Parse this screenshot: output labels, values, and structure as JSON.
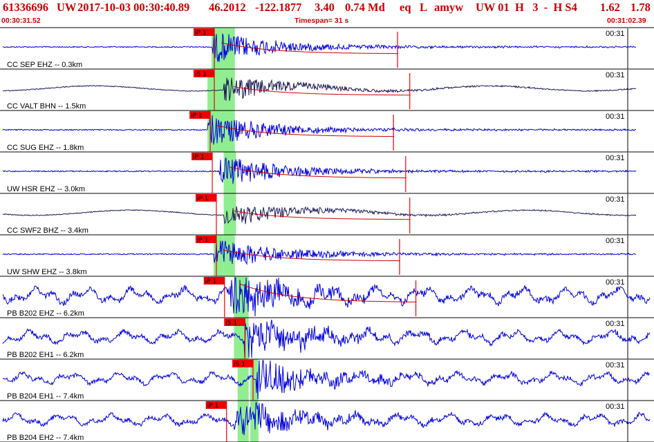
{
  "header": {
    "event_id": "61336696",
    "network": "UW",
    "origin_time": "2017-10-03 00:30:40.89",
    "lat": "46.2012",
    "lon": "-122.1877",
    "depth": "3.40",
    "magnitude": "0.74 Md",
    "event_type": "eq",
    "location_type": "L",
    "analyst": "amyw",
    "quality": "UW 01  H   3  -  H S4",
    "value1": "1.62",
    "value2": "1.78"
  },
  "timespan": {
    "start_time": "00:30:31.52",
    "label": "Timespan=  31 s",
    "end_time": "00:31:02.39"
  },
  "colors": {
    "header_red": "#cc0000",
    "pick_red": "#ee0000",
    "trace_blue": "#0000dd",
    "trace_dark": "#1a1a55",
    "highlight_green": "#90ee90",
    "coda_red": "#cc0000"
  },
  "chart_data": {
    "type": "line",
    "x_unit": "seconds",
    "time_window": [
      0,
      31
    ],
    "traces": [
      {
        "label": "CC SEP EHZ -- 0.3km",
        "pick": "iP 1",
        "pick_time": 10.4,
        "s_band": [
          10.4,
          11.0
        ],
        "time_mark": "00:31",
        "color": "#0000dd",
        "amplitude": 0.45,
        "onset": 10.4
      },
      {
        "label": "CC VALT BHN -- 1.5km",
        "pick": "iS 1",
        "pick_time": 10.4,
        "s_band": [
          10.2,
          11.2
        ],
        "time_mark": "00:31",
        "color": "#1a1a55",
        "amplitude": 0.35,
        "onset": 11.0
      },
      {
        "label": "CC SUG EHZ -- 1.8km",
        "pick": "iP 1",
        "pick_time": 10.2,
        "s_band": [
          10.2,
          11.1
        ],
        "time_mark": "00:31",
        "color": "#0000dd",
        "amplitude": 0.45,
        "onset": 10.2
      },
      {
        "label": "UW HSR EHZ -- 3.0km",
        "pick": "iP 1",
        "pick_time": 10.3,
        "s_band": [
          11.0,
          11.6
        ],
        "time_mark": "00:31",
        "color": "#0000dd",
        "amplitude": 0.45,
        "onset": 10.8
      },
      {
        "label": "CC SWF2 BHZ -- 3.4km",
        "pick": "iP 1",
        "pick_time": 10.5,
        "s_band": [
          11.0,
          11.6
        ],
        "time_mark": "00:31",
        "color": "#1a1a55",
        "amplitude": 0.35,
        "onset": 11.0
      },
      {
        "label": "UW SHW EHZ -- 3.8km",
        "pick": "iP 1",
        "pick_time": 10.5,
        "s_band": [
          10.5,
          11.0
        ],
        "time_mark": "00:31",
        "color": "#0000dd",
        "amplitude": 0.45,
        "onset": 10.5
      },
      {
        "label": "PB B202 EHZ -- 6.2km",
        "pick": "iP 1",
        "pick_time": 10.9,
        "s_band": [
          11.5,
          12.0
        ],
        "time_mark": "00:31",
        "color": "#0000dd",
        "amplitude": 0.75,
        "onset": 11.3
      },
      {
        "label": "PB B202 EH1 -- 6.2km",
        "pick": "iS 1",
        "pick_time": 11.9,
        "s_band": [
          11.5,
          12.0
        ],
        "time_mark": "00:31",
        "color": "#0000dd",
        "amplitude": 0.6,
        "onset": 12.0
      },
      {
        "label": "PB B204 EH1 -- 7.4km",
        "pick": "iS 1",
        "pick_time": 12.3,
        "s_band": [
          12.3,
          12.7
        ],
        "time_mark": "00:31",
        "color": "#0000dd",
        "amplitude": 0.55,
        "onset": 12.6
      },
      {
        "label": "PB B204 EH2 -- 7.4km",
        "pick": "iP 1",
        "pick_time": 11.0,
        "s_band": [
          12.3,
          12.7
        ],
        "time_mark": "00:31",
        "color": "#0000dd",
        "amplitude": 0.55,
        "onset": 11.5
      }
    ],
    "p_band": [
      11.0,
      11.5
    ]
  }
}
